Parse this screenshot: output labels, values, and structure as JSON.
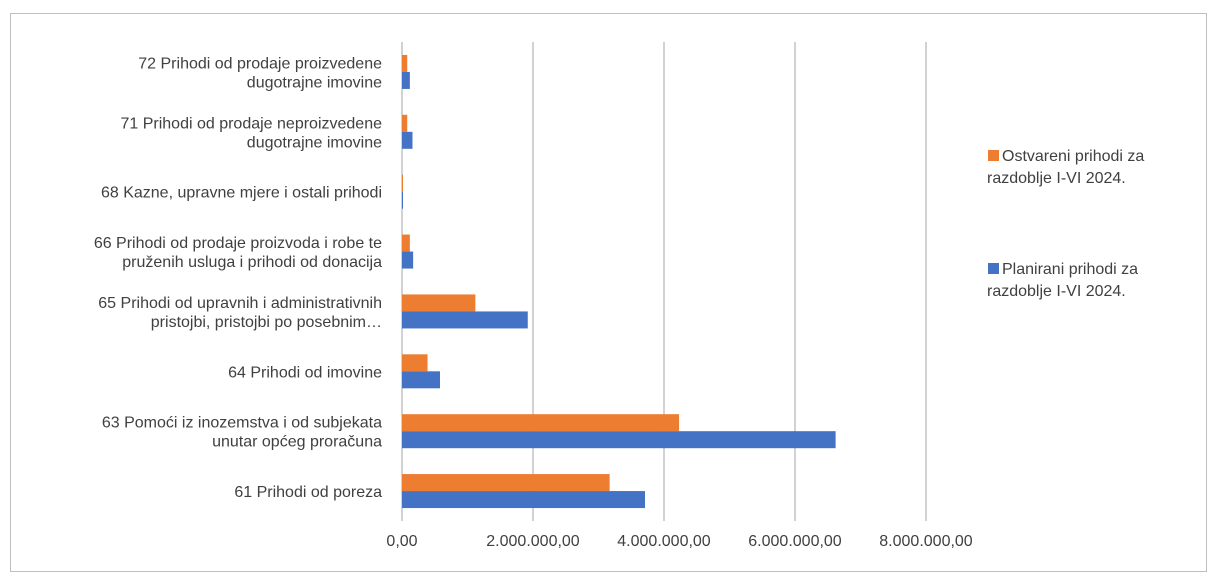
{
  "chart_data": {
    "type": "bar",
    "orientation": "horizontal",
    "categories": [
      [
        "61 Prihodi od poreza"
      ],
      [
        "63 Pomoći iz inozemstva i od subjekata",
        "unutar općeg proračuna"
      ],
      [
        "64 Prihodi od imovine"
      ],
      [
        "65 Prihodi od upravnih i administrativnih",
        "pristojbi, pristojbi po posebnim…"
      ],
      [
        "66 Prihodi od prodaje proizvoda i robe te",
        "pruženih usluga i prihodi od donacija"
      ],
      [
        "68 Kazne, upravne mjere i ostali prihodi"
      ],
      [
        "71 Prihodi od prodaje neproizvedene",
        "dugotrajne imovine"
      ],
      [
        "72 Prihodi od prodaje proizvedene",
        "dugotrajne imovine"
      ]
    ],
    "series": [
      {
        "name": "Ostvareni prihodi za razdoblje I-VI 2024.",
        "legend_lines": [
          "Ostvareni prihodi za",
          "razdoblje I-VI 2024."
        ],
        "color": "#ED7D31",
        "values": [
          3170000,
          4230000,
          390000,
          1120000,
          120000,
          5000,
          80000,
          80000
        ]
      },
      {
        "name": "Planirani prihodi za razdoblje I-VI 2024.",
        "legend_lines": [
          "Planirani prihodi za",
          "razdoblje I-VI 2024."
        ],
        "color": "#4472C4",
        "values": [
          3710000,
          6620000,
          580000,
          1920000,
          170000,
          10000,
          160000,
          120000
        ]
      }
    ],
    "xlim": [
      0,
      8000000
    ],
    "x_ticks": [
      0,
      2000000,
      4000000,
      6000000,
      8000000
    ],
    "x_tick_labels": [
      "0,00",
      "2.000.000,00",
      "4.000.000,00",
      "6.000.000,00",
      "8.000.000,00"
    ],
    "grid": true,
    "legend_position": "right",
    "title": "",
    "xlabel": "",
    "ylabel": ""
  }
}
